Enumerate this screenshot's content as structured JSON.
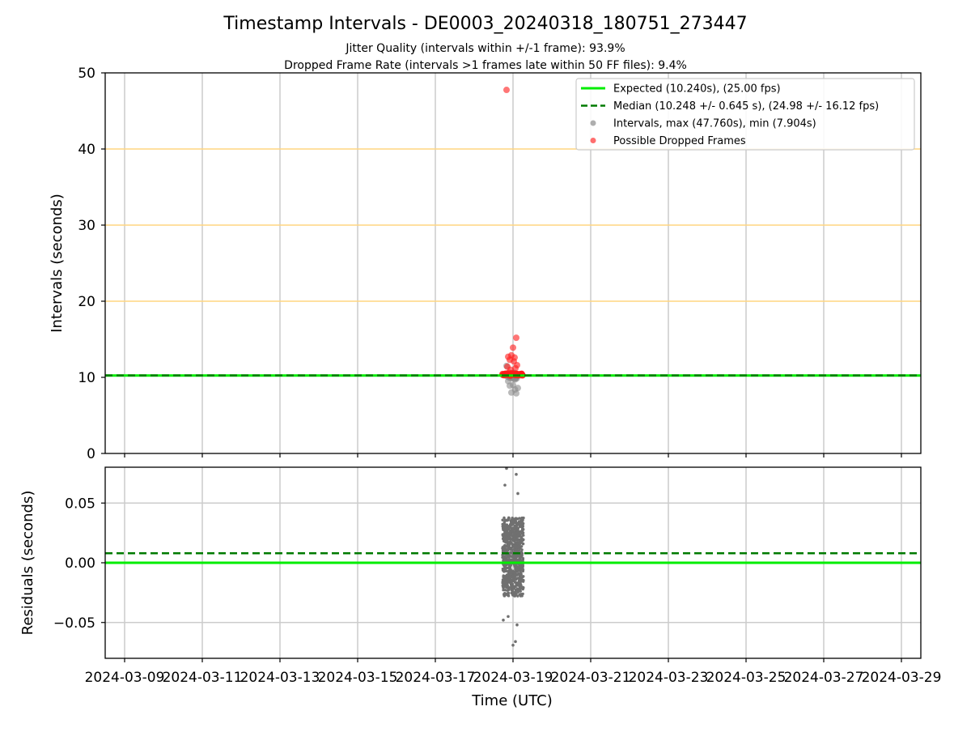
{
  "chart_data": {
    "type": "scatter",
    "title": "Timestamp Intervals - DE0003_20240318_180751_273447",
    "subtitle_lines": [
      "Jitter Quality (intervals within +/-1 frame): 93.9%",
      "Dropped Frame Rate (intervals >1 frames late within 50 FF files): 9.4%"
    ],
    "xlabel": "Time (UTC)",
    "x_tick_labels": [
      "2024-03-09",
      "2024-03-11",
      "2024-03-13",
      "2024-03-15",
      "2024-03-17",
      "2024-03-19",
      "2024-03-21",
      "2024-03-23",
      "2024-03-25",
      "2024-03-27",
      "2024-03-29"
    ],
    "x_range": [
      "2024-03-08T12:00",
      "2024-03-29T12:00"
    ],
    "top_panel": {
      "ylabel": "Intervals (seconds)",
      "ylim": [
        0,
        50
      ],
      "y_ticks": [
        "0",
        "10",
        "20",
        "30",
        "40",
        "50"
      ],
      "highlight_lines": [
        20,
        30,
        40
      ],
      "highlight_color": "#ffd580",
      "expected": 10.24,
      "median": 10.248,
      "legend_position": "top-right",
      "legend": [
        {
          "label": "Expected (10.240s), (25.00 fps)",
          "style": "solid-line",
          "color": "#00ee00"
        },
        {
          "label": "Median (10.248 +/- 0.645 s), (24.98 +/- 16.12 fps)",
          "style": "dashed-line",
          "color": "#007a00"
        },
        {
          "label": "Intervals, max (47.760s), min (7.904s)",
          "style": "marker",
          "color": "#8c8c8c"
        },
        {
          "label": "Possible Dropped Frames",
          "style": "marker",
          "color": "#ff3030"
        }
      ],
      "dropped_frames_points": [
        {
          "x": "2024-03-18T20:00",
          "y": 47.76
        },
        {
          "x": "2024-03-19T02:00",
          "y": 15.2
        },
        {
          "x": "2024-03-19T00:00",
          "y": 13.9
        },
        {
          "x": "2024-03-18T23:00",
          "y": 12.9
        },
        {
          "x": "2024-03-18T21:00",
          "y": 12.7
        },
        {
          "x": "2024-03-19T01:00",
          "y": 12.6
        },
        {
          "x": "2024-03-18T22:00",
          "y": 12.3
        },
        {
          "x": "2024-03-19T00:30",
          "y": 12.1
        },
        {
          "x": "2024-03-19T02:30",
          "y": 11.6
        },
        {
          "x": "2024-03-18T20:30",
          "y": 11.4
        },
        {
          "x": "2024-03-19T01:30",
          "y": 11.2
        },
        {
          "x": "2024-03-18T22:30",
          "y": 11.0
        },
        {
          "x": "2024-03-18T21:30",
          "y": 10.6
        },
        {
          "x": "2024-03-18T23:30",
          "y": 10.5
        },
        {
          "x": "2024-03-19T00:15",
          "y": 10.4
        },
        {
          "x": "2024-03-19T02:15",
          "y": 10.3
        },
        {
          "x": "2024-03-18T20:45",
          "y": 10.3
        },
        {
          "x": "2024-03-19T01:45",
          "y": 10.3
        },
        {
          "x": "2024-03-18T22:15",
          "y": 10.2
        },
        {
          "x": "2024-03-19T03:00",
          "y": 10.3
        }
      ],
      "interval_points_sample": [
        {
          "x": "2024-03-18T20:00",
          "y": 11.5
        },
        {
          "x": "2024-03-18T21:00",
          "y": 9.5
        },
        {
          "x": "2024-03-18T22:00",
          "y": 8.9
        },
        {
          "x": "2024-03-18T23:00",
          "y": 8.0
        },
        {
          "x": "2024-03-19T00:00",
          "y": 9.0
        },
        {
          "x": "2024-03-19T01:00",
          "y": 9.8
        },
        {
          "x": "2024-03-19T02:00",
          "y": 7.9
        },
        {
          "x": "2024-03-19T03:00",
          "y": 8.6
        },
        {
          "x": "2024-03-18T20:30",
          "y": 10.1
        },
        {
          "x": "2024-03-18T21:30",
          "y": 10.0
        },
        {
          "x": "2024-03-18T22:30",
          "y": 10.2
        },
        {
          "x": "2024-03-18T23:30",
          "y": 9.9
        },
        {
          "x": "2024-03-19T00:30",
          "y": 10.1
        },
        {
          "x": "2024-03-19T01:30",
          "y": 10.0
        },
        {
          "x": "2024-03-19T02:30",
          "y": 10.2
        },
        {
          "x": "2024-03-19T01:15",
          "y": 8.4
        }
      ]
    },
    "bottom_panel": {
      "ylabel": "Residuals (seconds)",
      "ylim": [
        -0.08,
        0.08
      ],
      "y_ticks": [
        "0.05",
        "0.00",
        "−0.05"
      ],
      "y_tick_values": [
        0.05,
        0.0,
        -0.05
      ],
      "expected": 0.0,
      "median": 0.008,
      "residual_center": "2024-03-19T00:00",
      "residual_core_range": [
        -0.028,
        0.038
      ],
      "residual_extremes": [
        {
          "x": "2024-03-18T20:00",
          "y": 0.079
        },
        {
          "x": "2024-03-19T02:00",
          "y": 0.074
        },
        {
          "x": "2024-03-18T19:00",
          "y": 0.065
        },
        {
          "x": "2024-03-19T03:00",
          "y": 0.058
        },
        {
          "x": "2024-03-18T21:00",
          "y": -0.045
        },
        {
          "x": "2024-03-19T00:00",
          "y": -0.069
        },
        {
          "x": "2024-03-19T01:30",
          "y": -0.066
        },
        {
          "x": "2024-03-18T18:00",
          "y": -0.048
        },
        {
          "x": "2024-03-19T02:30",
          "y": -0.052
        }
      ]
    },
    "grid": true
  }
}
